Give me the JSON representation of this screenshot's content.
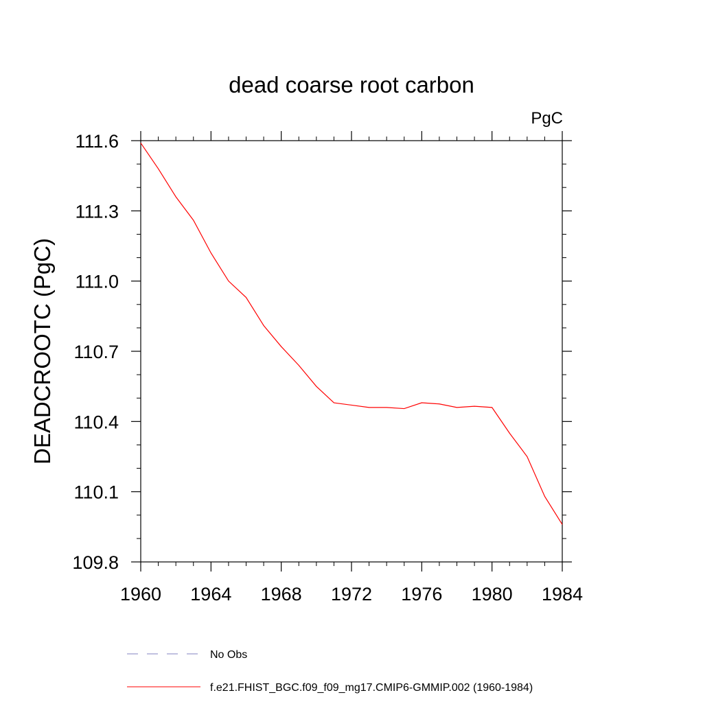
{
  "chart_data": {
    "type": "line",
    "title": "dead coarse root carbon",
    "units_label": "PgC",
    "ylabel": "DEADCROOTC  (PgC)",
    "xlabel": "",
    "xlim": [
      1960,
      1984
    ],
    "ylim": [
      109.8,
      111.6
    ],
    "x_ticks": [
      1960,
      1964,
      1968,
      1972,
      1976,
      1980,
      1984
    ],
    "x_tick_labels": [
      "1960",
      "1964",
      "1968",
      "1972",
      "1976",
      "1980",
      "1984"
    ],
    "y_ticks": [
      109.8,
      110.1,
      110.4,
      110.7,
      111.0,
      111.3,
      111.6
    ],
    "y_tick_labels": [
      "109.8",
      "110.1",
      "110.4",
      "110.7",
      "111.0",
      "111.3",
      "111.6"
    ],
    "grid": false,
    "legend_position": "bottom",
    "series": [
      {
        "name": "f.e21.FHIST_BGC.f09_f09_mg17.CMIP6-GMMIP.002 (1960-1984)",
        "color": "#ff0000",
        "style": "solid",
        "x": [
          1960,
          1961,
          1962,
          1963,
          1964,
          1965,
          1966,
          1967,
          1968,
          1969,
          1970,
          1971,
          1972,
          1973,
          1974,
          1975,
          1976,
          1977,
          1978,
          1979,
          1980,
          1981,
          1982,
          1983,
          1984
        ],
        "values": [
          111.59,
          111.48,
          111.36,
          111.26,
          111.12,
          111.0,
          110.93,
          110.81,
          110.72,
          110.64,
          110.55,
          110.48,
          110.47,
          110.46,
          110.46,
          110.455,
          110.48,
          110.475,
          110.46,
          110.465,
          110.46,
          110.35,
          110.25,
          110.08,
          109.96
        ]
      },
      {
        "name": "No Obs",
        "color": "#8080c0",
        "style": "dashed",
        "x": [],
        "values": []
      }
    ]
  }
}
